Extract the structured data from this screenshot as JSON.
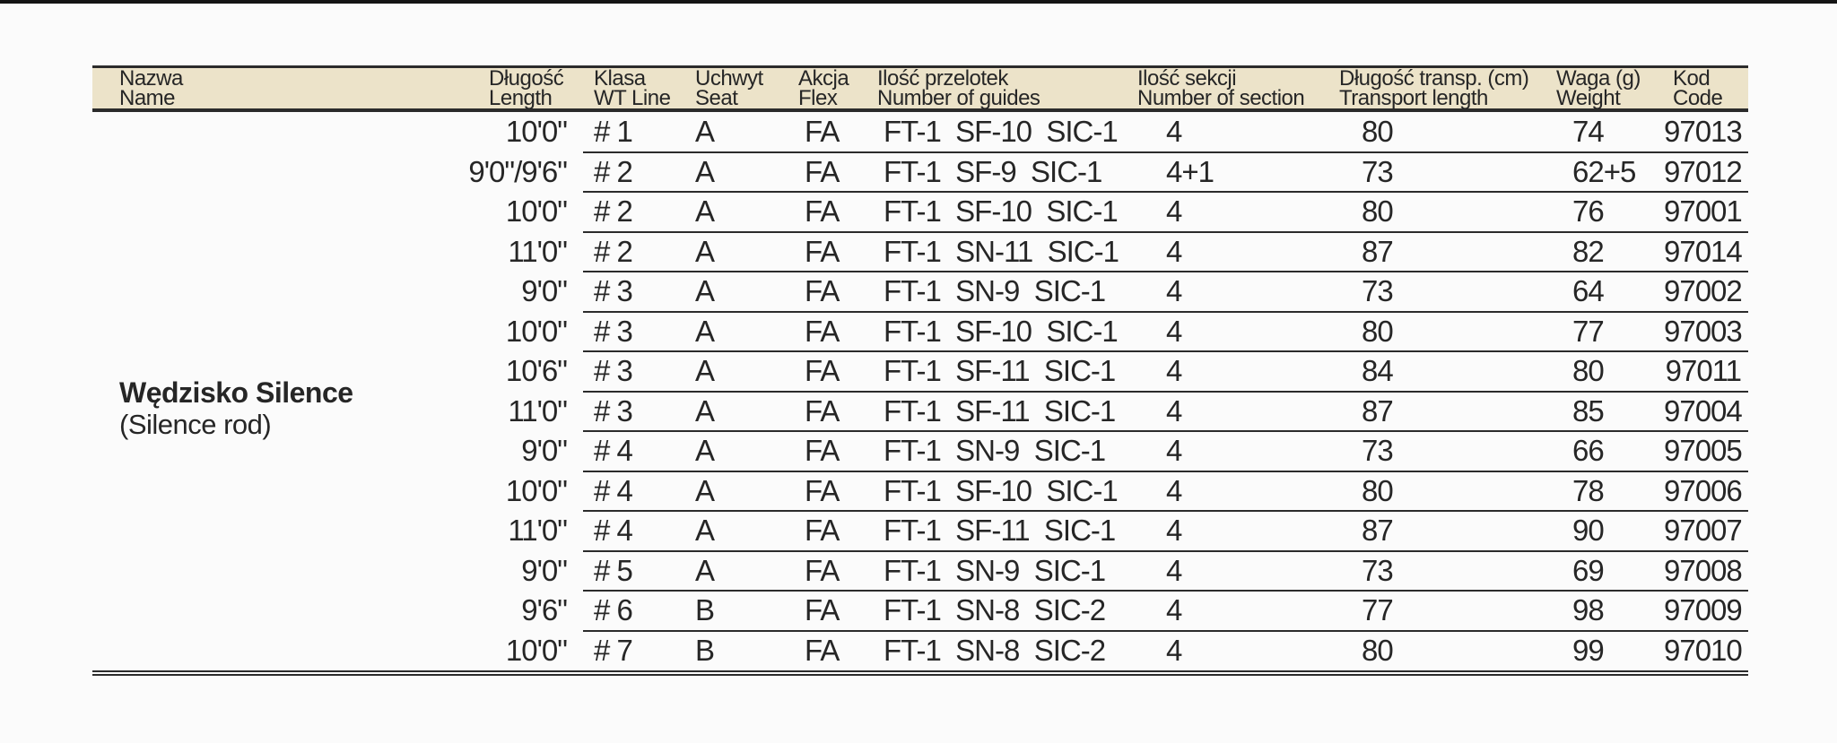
{
  "colors": {
    "page_background": "#fbfbfb",
    "top_bar": "#141414",
    "header_background": "#ece3c9",
    "rule_color": "#2b2b2b",
    "text_color": "#262626"
  },
  "table": {
    "columns": [
      {
        "pl": "Nazwa",
        "en": "Name"
      },
      {
        "pl": "Długość",
        "en": "Length"
      },
      {
        "pl": "Klasa",
        "en": "WT Line"
      },
      {
        "pl": "Uchwyt",
        "en": "Seat"
      },
      {
        "pl": "Akcja",
        "en": "Flex"
      },
      {
        "pl": "Ilość przelotek",
        "en": "Number of guides"
      },
      {
        "pl": "Ilość sekcji",
        "en": "Number of section"
      },
      {
        "pl": "Długość transp. (cm)",
        "en": "Transport length"
      },
      {
        "pl": "Waga (g)",
        "en": "Weight"
      },
      {
        "pl": "Kod",
        "en": "Code"
      }
    ],
    "product": {
      "name_pl": "Wędzisko Silence",
      "name_en": "(Silence rod)"
    },
    "rows": [
      {
        "length": "10'0\"",
        "wt_line": "# 1",
        "seat": "A",
        "flex": "FA",
        "guides": "FT-1  SF-10  SIC-1",
        "sections": "4",
        "transport": "80",
        "weight": "74",
        "code": "97013"
      },
      {
        "length": "9'0\"/9'6\"",
        "wt_line": "# 2",
        "seat": "A",
        "flex": "FA",
        "guides": "FT-1  SF-9  SIC-1",
        "sections": "4+1",
        "transport": "73",
        "weight": "62+5",
        "code": "97012"
      },
      {
        "length": "10'0\"",
        "wt_line": "# 2",
        "seat": "A",
        "flex": "FA",
        "guides": "FT-1  SF-10  SIC-1",
        "sections": "4",
        "transport": "80",
        "weight": "76",
        "code": "97001"
      },
      {
        "length": "11'0\"",
        "wt_line": "# 2",
        "seat": "A",
        "flex": "FA",
        "guides": "FT-1  SN-11  SIC-1",
        "sections": "4",
        "transport": "87",
        "weight": "82",
        "code": "97014"
      },
      {
        "length": "9'0\"",
        "wt_line": "# 3",
        "seat": "A",
        "flex": "FA",
        "guides": "FT-1  SN-9  SIC-1",
        "sections": "4",
        "transport": "73",
        "weight": "64",
        "code": "97002"
      },
      {
        "length": "10'0\"",
        "wt_line": "# 3",
        "seat": "A",
        "flex": "FA",
        "guides": "FT-1  SF-10  SIC-1",
        "sections": "4",
        "transport": "80",
        "weight": "77",
        "code": "97003"
      },
      {
        "length": "10'6\"",
        "wt_line": "# 3",
        "seat": "A",
        "flex": "FA",
        "guides": "FT-1  SF-11  SIC-1",
        "sections": "4",
        "transport": "84",
        "weight": "80",
        "code": "97011"
      },
      {
        "length": "11'0\"",
        "wt_line": "# 3",
        "seat": "A",
        "flex": "FA",
        "guides": "FT-1  SF-11  SIC-1",
        "sections": "4",
        "transport": "87",
        "weight": "85",
        "code": "97004"
      },
      {
        "length": "9'0\"",
        "wt_line": "# 4",
        "seat": "A",
        "flex": "FA",
        "guides": "FT-1  SN-9  SIC-1",
        "sections": "4",
        "transport": "73",
        "weight": "66",
        "code": "97005"
      },
      {
        "length": "10'0\"",
        "wt_line": "# 4",
        "seat": "A",
        "flex": "FA",
        "guides": "FT-1  SF-10  SIC-1",
        "sections": "4",
        "transport": "80",
        "weight": "78",
        "code": "97006"
      },
      {
        "length": "11'0\"",
        "wt_line": "# 4",
        "seat": "A",
        "flex": "FA",
        "guides": "FT-1  SF-11  SIC-1",
        "sections": "4",
        "transport": "87",
        "weight": "90",
        "code": "97007"
      },
      {
        "length": "9'0\"",
        "wt_line": "# 5",
        "seat": "A",
        "flex": "FA",
        "guides": "FT-1  SN-9  SIC-1",
        "sections": "4",
        "transport": "73",
        "weight": "69",
        "code": "97008"
      },
      {
        "length": "9'6\"",
        "wt_line": "# 6",
        "seat": "B",
        "flex": "FA",
        "guides": "FT-1  SN-8  SIC-2",
        "sections": "4",
        "transport": "77",
        "weight": "98",
        "code": "97009"
      },
      {
        "length": "10'0\"",
        "wt_line": "# 7",
        "seat": "B",
        "flex": "FA",
        "guides": "FT-1  SN-8  SIC-2",
        "sections": "4",
        "transport": "80",
        "weight": "99",
        "code": "97010"
      }
    ]
  }
}
